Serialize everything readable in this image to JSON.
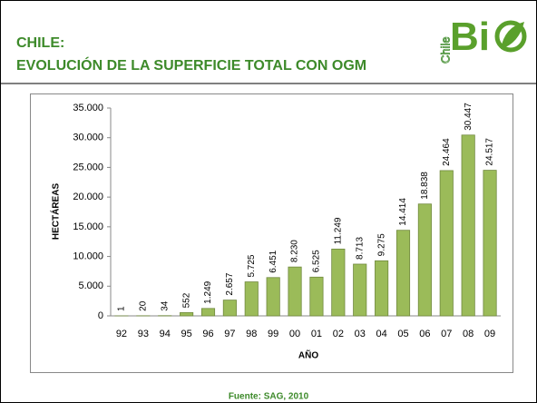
{
  "header": {
    "line1": "CHILE:",
    "line2": "EVOLUCIÓN DE LA SUPERFICIE TOTAL CON OGM"
  },
  "logo": {
    "vertical": "Chile",
    "main": "Bi"
  },
  "chart_data": {
    "type": "bar",
    "categories": [
      "92",
      "93",
      "94",
      "95",
      "96",
      "97",
      "98",
      "99",
      "00",
      "01",
      "02",
      "03",
      "04",
      "05",
      "06",
      "07",
      "08",
      "09"
    ],
    "values": [
      1,
      20,
      34,
      552,
      1249,
      2657,
      5725,
      6451,
      8230,
      6525,
      11249,
      8713,
      9275,
      14414,
      18838,
      24464,
      30447,
      24517
    ],
    "value_labels": [
      "1",
      "20",
      "34",
      "552",
      "1.249",
      "2.657",
      "5.725",
      "6.451",
      "8.230",
      "6.525",
      "11.249",
      "8.713",
      "9.275",
      "14.414",
      "18.838",
      "24.464",
      "30.447",
      "24.517"
    ],
    "color": "#9bbb59",
    "ylim": [
      0,
      35000
    ],
    "yticks": [
      0,
      {
        "value": 5000,
        "label": "5.000"
      },
      {
        "value": 10000,
        "label": "10.000"
      },
      {
        "value": 15000,
        "label": "15.000"
      },
      {
        "value": 20000,
        "label": "20.000"
      },
      {
        "value": 25000,
        "label": "25.000"
      },
      {
        "value": 30000,
        "label": "30.000"
      },
      {
        "value": 35000,
        "label": "35.000"
      }
    ],
    "y_label": "HECTÁREAS",
    "x_label": "AÑO",
    "grid": false
  },
  "footer": "Fuente: SAG, 2010"
}
